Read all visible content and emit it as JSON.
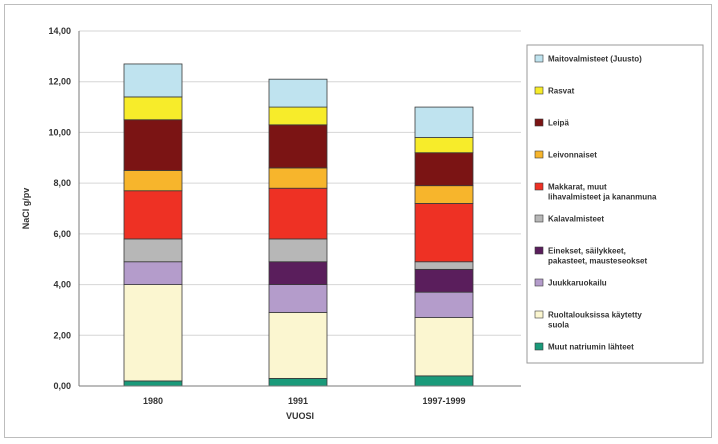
{
  "chart_data": {
    "type": "bar",
    "stacked": true,
    "title": "",
    "xlabel": "VUOSI",
    "ylabel": "NaCl g/pv",
    "categories": [
      "1980",
      "1991",
      "1997-1999"
    ],
    "ylim": [
      0,
      14
    ],
    "yticks": [
      "0,00",
      "2,00",
      "4,00",
      "6,00",
      "8,00",
      "10,00",
      "12,00",
      "14,00"
    ],
    "legend_position": "right",
    "series": [
      {
        "name": "Muut natriumin lähteet",
        "color": "#1a9a7a",
        "values": [
          0.2,
          0.3,
          0.4
        ]
      },
      {
        "name": "Ruoltalouksissa käytetty suola",
        "color": "#fbf6d0",
        "values": [
          3.8,
          2.6,
          2.3
        ]
      },
      {
        "name": "Juukkaruokailu",
        "color": "#b49ccb",
        "values": [
          0.9,
          1.1,
          1.0
        ]
      },
      {
        "name": "Einekset, säilykkeet, pakasteet, mausteseokset",
        "color": "#5a1e5c",
        "values": [
          0.0,
          0.9,
          0.9
        ]
      },
      {
        "name": "Kalavalmisteet",
        "color": "#b7b7b7",
        "values": [
          0.9,
          0.9,
          0.3
        ]
      },
      {
        "name": "Makkarat, muut lihavalmisteet ja kananmuna",
        "color": "#ee3124",
        "values": [
          1.9,
          2.0,
          2.3
        ]
      },
      {
        "name": "Leivonnaiset",
        "color": "#f7b52c",
        "values": [
          0.8,
          0.8,
          0.7
        ]
      },
      {
        "name": "Leipä",
        "color": "#7b1414",
        "values": [
          2.0,
          1.7,
          1.3
        ]
      },
      {
        "name": "Rasvat",
        "color": "#f7ec2a",
        "values": [
          0.9,
          0.7,
          0.6
        ]
      },
      {
        "name": "Maitovalmisteet (Juusto)",
        "color": "#bfe3ef",
        "values": [
          1.3,
          1.1,
          1.2
        ]
      }
    ]
  }
}
